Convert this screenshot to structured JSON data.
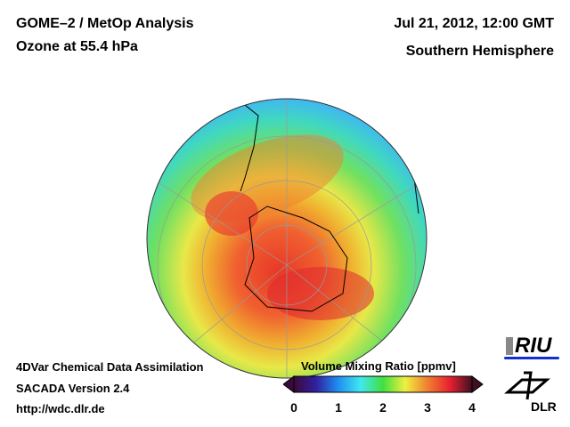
{
  "header": {
    "title": "GOME–2 / MetOp Analysis",
    "subtitle": "Ozone at 55.4 hPa",
    "datetime": "Jul 21, 2012, 12:00 GMT",
    "region": "Southern Hemisphere"
  },
  "footer": {
    "line1": "4DVar Chemical Data Assimilation",
    "line2": "SACADA Version 2.4",
    "url": "http://wdc.dlr.de"
  },
  "colorbar": {
    "title": "Volume Mixing Ratio [ppmv]",
    "ticks": [
      "0",
      "1",
      "2",
      "3",
      "4"
    ],
    "min": 0,
    "max": 4,
    "colors": [
      "#3a0a3a",
      "#3020a0",
      "#2090f0",
      "#40e8f0",
      "#40e040",
      "#f0f040",
      "#f08030",
      "#e82030",
      "#401020"
    ]
  },
  "logos": {
    "riu": "RIU",
    "dlr": "DLR"
  }
}
